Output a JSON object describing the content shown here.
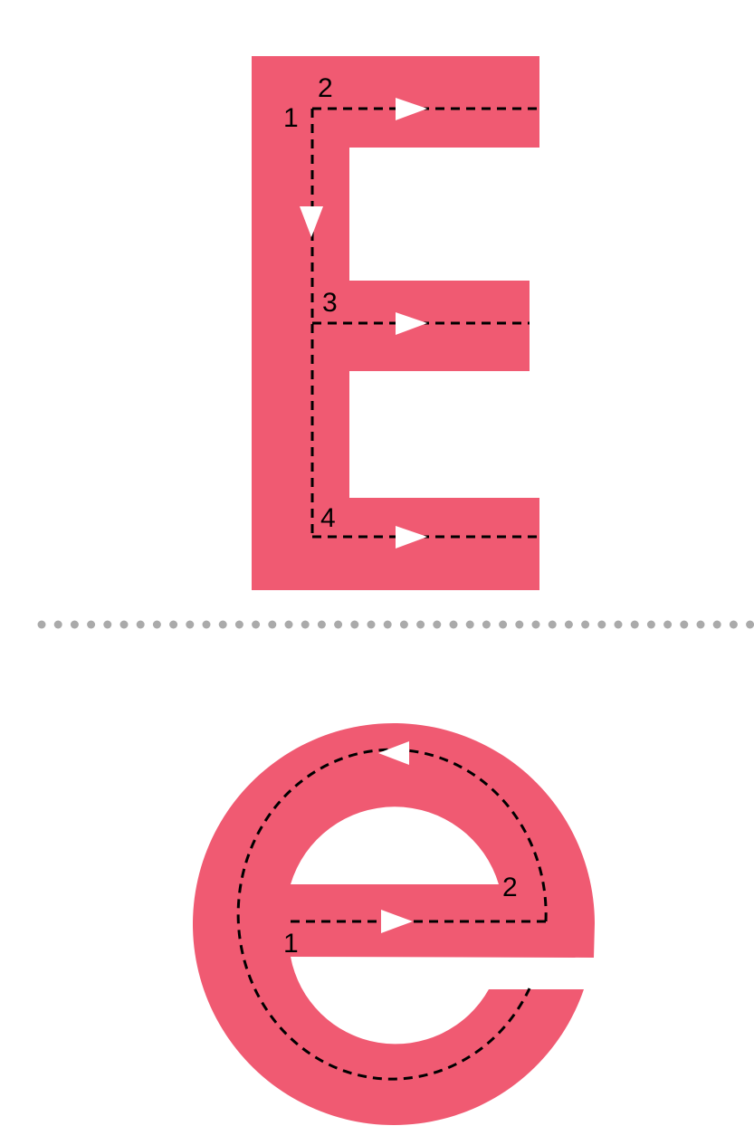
{
  "colors": {
    "letter": "#f05a72",
    "guide": "#000000",
    "arrow": "#ffffff",
    "divider": "#aaaaaa"
  },
  "uppercase": {
    "letter": "E",
    "step_labels": [
      "1",
      "2",
      "3",
      "4"
    ]
  },
  "lowercase": {
    "letter": "e",
    "step_labels": [
      "1",
      "2"
    ]
  },
  "divider": {
    "style": "dotted"
  }
}
